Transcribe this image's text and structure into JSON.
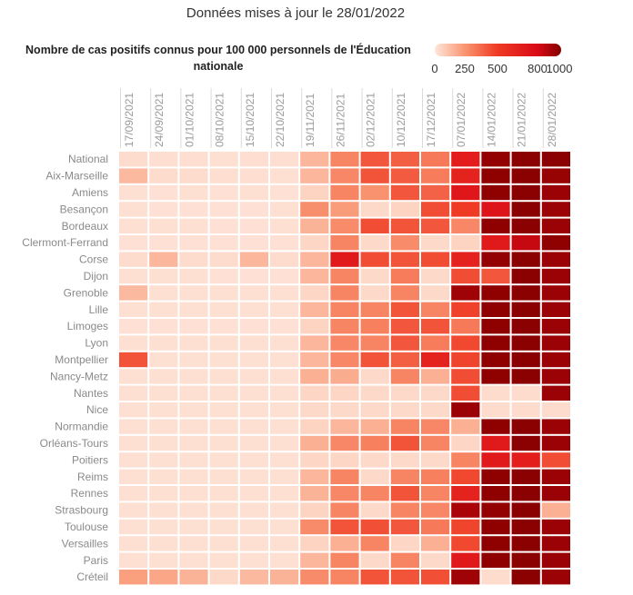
{
  "chart_data": {
    "type": "heatmap",
    "title": "Données mises à jour le 28/01/2022",
    "legend": {
      "title": "Nombre de cas positifs connus pour 100 000 personnels de l'Éducation nationale",
      "ticks": [
        0,
        250,
        500,
        800,
        1000
      ],
      "colors": [
        "#fee6da",
        "#f99672",
        "#ef3a24",
        "#d90a17",
        "#8b0000"
      ],
      "placement": "top-right"
    },
    "x": [
      "17/09/2021",
      "24/09/2021",
      "01/10/2021",
      "08/10/2021",
      "15/10/2021",
      "22/10/2021",
      "19/11/2021",
      "26/11/2021",
      "02/12/2021",
      "10/12/2021",
      "17/12/2021",
      "07/01/2022",
      "14/01/2022",
      "21/01/2022",
      "28/01/2022"
    ],
    "y": [
      "National",
      "Aix-Marseille",
      "Amiens",
      "Besançon",
      "Bordeaux",
      "Clermont-Ferrand",
      "Corse",
      "Dijon",
      "Grenoble",
      "Lille",
      "Limoges",
      "Lyon",
      "Montpellier",
      "Nancy-Metz",
      "Nantes",
      "Nice",
      "Normandie",
      "Orléans-Tours",
      "Poitiers",
      "Reims",
      "Rennes",
      "Strasbourg",
      "Toulouse",
      "Versailles",
      "Paris",
      "Créteil"
    ],
    "values": [
      [
        30,
        25,
        25,
        20,
        25,
        25,
        150,
        300,
        420,
        400,
        330,
        680,
        980,
        1000,
        1000
      ],
      [
        140,
        30,
        30,
        25,
        25,
        20,
        150,
        290,
        430,
        410,
        320,
        650,
        990,
        1000,
        970
      ],
      [
        20,
        15,
        20,
        15,
        20,
        15,
        60,
        300,
        260,
        420,
        390,
        720,
        990,
        1000,
        960
      ],
      [
        20,
        15,
        15,
        15,
        15,
        20,
        270,
        230,
        40,
        60,
        450,
        500,
        740,
        1000,
        960
      ],
      [
        20,
        20,
        20,
        15,
        15,
        20,
        160,
        280,
        450,
        430,
        420,
        290,
        990,
        1000,
        960
      ],
      [
        15,
        15,
        15,
        15,
        15,
        15,
        50,
        300,
        40,
        280,
        40,
        60,
        700,
        850,
        990
      ],
      [
        30,
        150,
        30,
        30,
        150,
        30,
        150,
        700,
        450,
        430,
        450,
        650,
        980,
        1000,
        960
      ],
      [
        20,
        20,
        20,
        15,
        15,
        15,
        150,
        300,
        40,
        320,
        40,
        450,
        420,
        1000,
        960
      ],
      [
        140,
        20,
        20,
        20,
        20,
        20,
        50,
        300,
        40,
        300,
        40,
        950,
        990,
        1000,
        960
      ],
      [
        20,
        20,
        20,
        20,
        20,
        20,
        150,
        300,
        300,
        430,
        300,
        480,
        990,
        1000,
        960
      ],
      [
        15,
        15,
        15,
        15,
        15,
        15,
        60,
        300,
        310,
        420,
        430,
        330,
        990,
        1000,
        960
      ],
      [
        20,
        20,
        20,
        20,
        20,
        20,
        150,
        290,
        300,
        420,
        320,
        460,
        990,
        1000,
        960
      ],
      [
        430,
        20,
        20,
        20,
        20,
        20,
        150,
        290,
        430,
        400,
        650,
        470,
        990,
        1000,
        960
      ],
      [
        20,
        20,
        20,
        20,
        20,
        20,
        170,
        180,
        40,
        300,
        170,
        450,
        990,
        1000,
        960
      ],
      [
        20,
        20,
        20,
        20,
        20,
        20,
        50,
        50,
        40,
        40,
        40,
        450,
        30,
        30,
        960
      ],
      [
        20,
        20,
        20,
        20,
        20,
        20,
        40,
        40,
        40,
        40,
        40,
        960,
        30,
        30,
        30
      ],
      [
        20,
        20,
        20,
        20,
        20,
        20,
        60,
        150,
        170,
        300,
        290,
        170,
        990,
        1000,
        960
      ],
      [
        20,
        20,
        20,
        20,
        20,
        20,
        170,
        290,
        310,
        430,
        300,
        50,
        700,
        1000,
        960
      ],
      [
        20,
        20,
        20,
        20,
        20,
        20,
        50,
        50,
        40,
        40,
        40,
        300,
        700,
        680,
        450
      ],
      [
        20,
        20,
        20,
        20,
        20,
        20,
        150,
        300,
        40,
        300,
        310,
        460,
        990,
        1000,
        960
      ],
      [
        20,
        20,
        20,
        20,
        20,
        20,
        160,
        290,
        300,
        430,
        300,
        650,
        990,
        1000,
        960
      ],
      [
        20,
        20,
        20,
        20,
        20,
        20,
        60,
        300,
        40,
        300,
        290,
        920,
        980,
        1000,
        170
      ],
      [
        20,
        20,
        20,
        20,
        20,
        20,
        280,
        430,
        440,
        420,
        330,
        470,
        990,
        1000,
        960
      ],
      [
        20,
        20,
        20,
        20,
        20,
        20,
        60,
        170,
        300,
        50,
        170,
        460,
        990,
        1000,
        960
      ],
      [
        20,
        20,
        20,
        20,
        20,
        20,
        150,
        300,
        40,
        300,
        40,
        700,
        990,
        1000,
        960
      ],
      [
        220,
        200,
        160,
        40,
        140,
        160,
        280,
        300,
        430,
        430,
        440,
        950,
        30,
        1000,
        960
      ]
    ]
  }
}
